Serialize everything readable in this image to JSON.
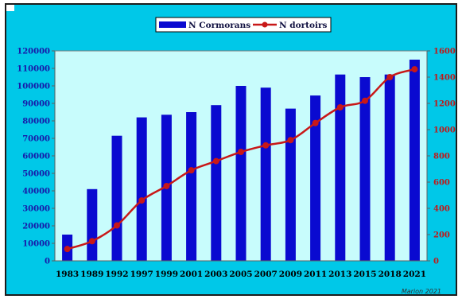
{
  "chart_data": {
    "type": "bar",
    "categories": [
      "1983",
      "1989",
      "1992",
      "1997",
      "1999",
      "2001",
      "2003",
      "2005",
      "2007",
      "2009",
      "2011",
      "2013",
      "2015",
      "2018",
      "2021"
    ],
    "series": [
      {
        "name": "N Cormorans",
        "kind": "bar",
        "axis": "left",
        "color": "#0a0ad0",
        "values": [
          15000,
          41000,
          71500,
          82000,
          83500,
          85000,
          89000,
          100000,
          99000,
          87000,
          94500,
          106500,
          105000,
          106500,
          115000
        ]
      },
      {
        "name": "N dortoirs",
        "kind": "line",
        "axis": "right",
        "color": "#c81818",
        "values": [
          90,
          150,
          270,
          460,
          570,
          690,
          760,
          830,
          880,
          920,
          1050,
          1170,
          1220,
          1400,
          1460
        ]
      }
    ],
    "y_left": {
      "ticks": [
        0,
        10000,
        20000,
        30000,
        40000,
        50000,
        60000,
        70000,
        80000,
        90000,
        100000,
        110000,
        120000
      ],
      "range": [
        0,
        120000
      ]
    },
    "y_right": {
      "ticks": [
        0,
        200,
        400,
        600,
        800,
        1000,
        1200,
        1400,
        1600
      ],
      "range": [
        0,
        1600
      ]
    },
    "legend": {
      "placement": "top-center",
      "bar_label": "N Cormorans",
      "line_label": "N dortoirs"
    },
    "grid": false,
    "credit": "Marion 2021",
    "colors": {
      "background": "#00c8e8",
      "plot_area": "#c8fcfc"
    }
  }
}
